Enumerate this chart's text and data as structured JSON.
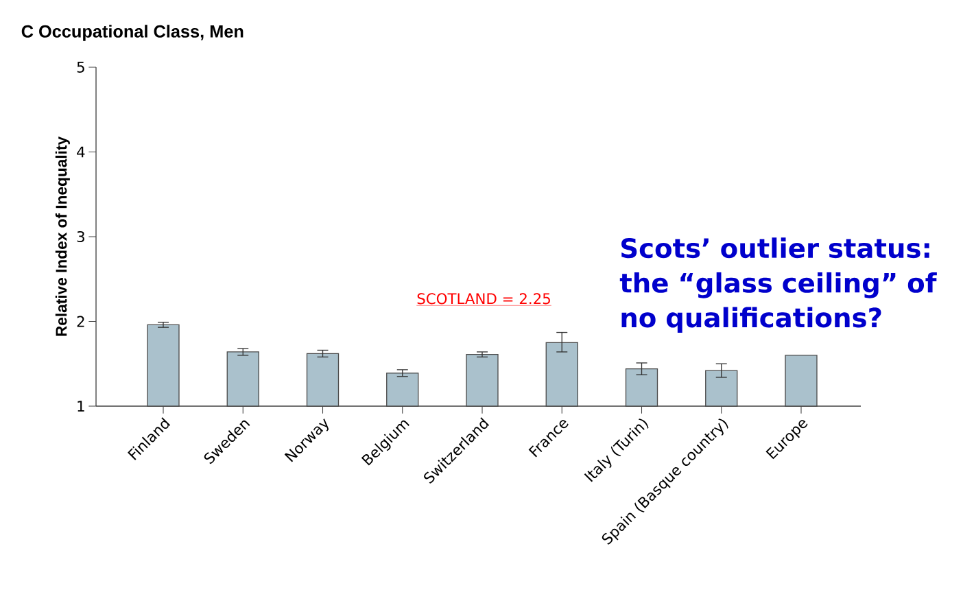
{
  "chart_data": {
    "type": "bar",
    "title": "C  Occupational Class, Men",
    "ylabel": "Relative Index of Inequality",
    "categories": [
      "Finland",
      "Sweden",
      "Norway",
      "Belgium",
      "Switzerland",
      "France",
      "Italy (Turin)",
      "Spain (Basque country)",
      "Europe"
    ],
    "values": [
      1.96,
      1.64,
      1.62,
      1.39,
      1.61,
      1.75,
      1.44,
      1.42,
      1.6
    ],
    "errors": [
      0.03,
      0.04,
      0.04,
      0.04,
      0.03,
      [
        1.64,
        1.87
      ],
      0.07,
      0.08,
      null
    ],
    "color": "#aac1cc",
    "ylim": [
      1,
      5
    ],
    "yticks": [
      1,
      2,
      3,
      4,
      5
    ],
    "annotations": [
      "SCOTLAND = 2.25",
      "Scots’ outlier status: the “glass ceiling” of no qualifications?"
    ]
  }
}
